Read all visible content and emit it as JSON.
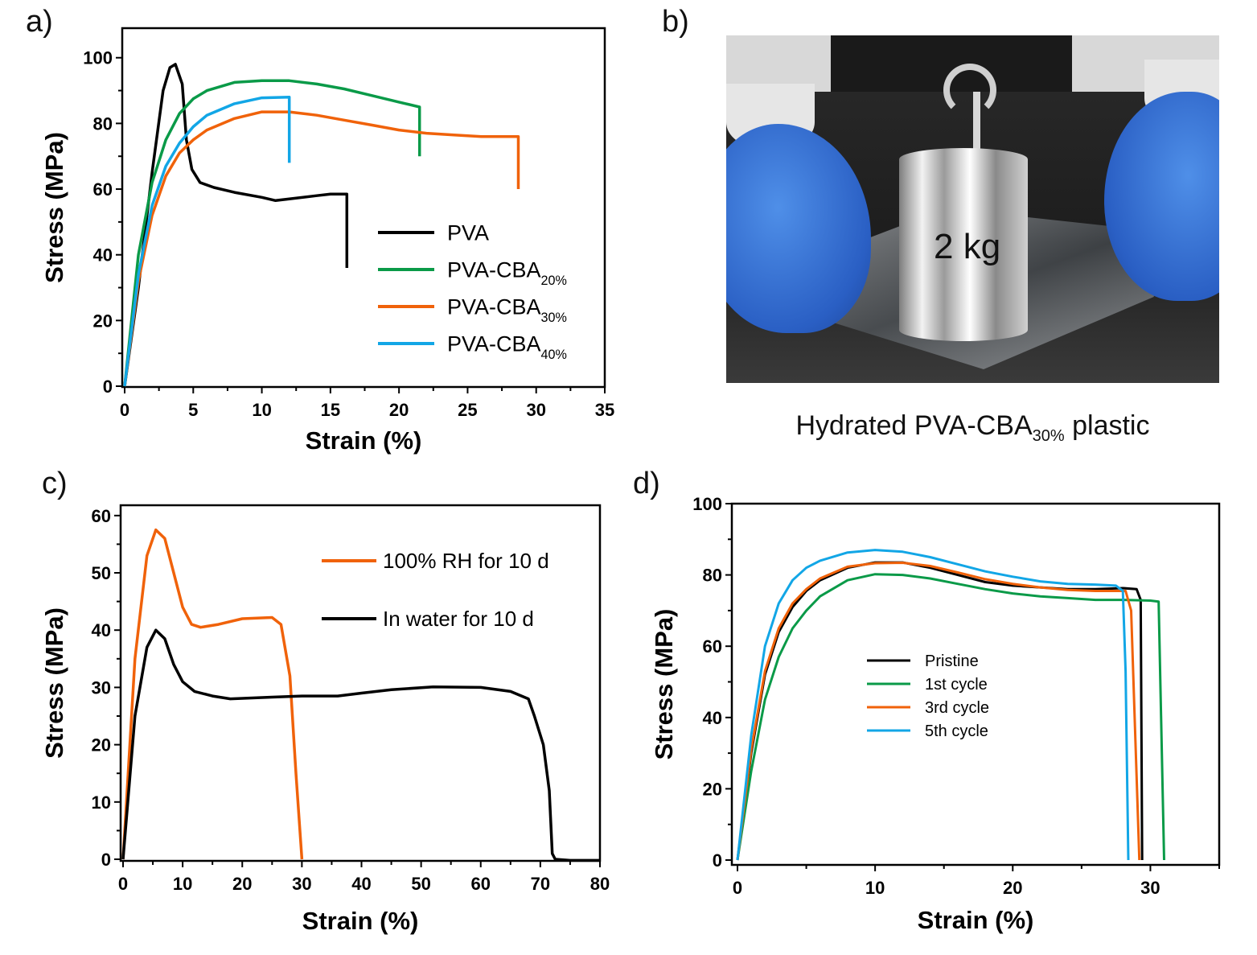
{
  "panels": {
    "a": "a)",
    "b": "b)",
    "c": "c)",
    "d": "d)"
  },
  "photo": {
    "weight_label": "2 kg",
    "caption_main": "Hydrated PVA-CBA",
    "caption_sub": "30%",
    "caption_end": " plastic"
  },
  "chart_data": [
    {
      "id": "a",
      "type": "line",
      "xlabel": "Strain (%)",
      "ylabel": "Stress (MPa)",
      "xlim": [
        0,
        35
      ],
      "ylim": [
        0,
        109
      ],
      "xticks": [
        0,
        5,
        10,
        15,
        20,
        25,
        30,
        35
      ],
      "yticks": [
        0,
        20,
        40,
        60,
        80,
        100
      ],
      "grid": false,
      "legend": "center-right",
      "series": [
        {
          "name": "PVA",
          "color": "#000000",
          "points": [
            [
              0,
              0
            ],
            [
              1,
              30
            ],
            [
              2,
              65
            ],
            [
              2.8,
              90
            ],
            [
              3.3,
              97
            ],
            [
              3.7,
              98
            ],
            [
              4.2,
              92
            ],
            [
              4.5,
              75
            ],
            [
              4.9,
              66
            ],
            [
              5.5,
              62
            ],
            [
              6.5,
              60.5
            ],
            [
              8,
              59
            ],
            [
              10,
              57.5
            ],
            [
              11,
              56.5
            ],
            [
              12,
              57
            ],
            [
              14,
              58
            ],
            [
              15,
              58.5
            ],
            [
              16.2,
              58.5
            ],
            [
              16.2,
              36
            ]
          ]
        },
        {
          "name": "PVA-CBA20%",
          "color": "#0a9a48",
          "points": [
            [
              0,
              0
            ],
            [
              1,
              40
            ],
            [
              2,
              62
            ],
            [
              3,
              75
            ],
            [
              4,
              83
            ],
            [
              5,
              87.5
            ],
            [
              6,
              90
            ],
            [
              8,
              92.5
            ],
            [
              10,
              93
            ],
            [
              12,
              93
            ],
            [
              14,
              92
            ],
            [
              16,
              90.5
            ],
            [
              18,
              88.5
            ],
            [
              20,
              86.5
            ],
            [
              21.5,
              85
            ],
            [
              21.5,
              70
            ]
          ]
        },
        {
          "name": "PVA-CBA30%",
          "color": "#f0620a",
          "points": [
            [
              0,
              0
            ],
            [
              1,
              32
            ],
            [
              2,
              52
            ],
            [
              3,
              64
            ],
            [
              4,
              71
            ],
            [
              5,
              75
            ],
            [
              6,
              78
            ],
            [
              8,
              81.5
            ],
            [
              10,
              83.5
            ],
            [
              12,
              83.5
            ],
            [
              14,
              82.5
            ],
            [
              16,
              81
            ],
            [
              18,
              79.5
            ],
            [
              20,
              78
            ],
            [
              22,
              77
            ],
            [
              24,
              76.5
            ],
            [
              26,
              76
            ],
            [
              28,
              76
            ],
            [
              28.7,
              76
            ],
            [
              28.7,
              60
            ]
          ]
        },
        {
          "name": "PVA-CBA40%",
          "color": "#12a6e6",
          "points": [
            [
              0,
              0
            ],
            [
              1,
              34
            ],
            [
              2,
              55
            ],
            [
              3,
              67
            ],
            [
              4,
              74
            ],
            [
              5,
              79
            ],
            [
              6,
              82.5
            ],
            [
              8,
              86
            ],
            [
              10,
              87.8
            ],
            [
              12,
              88
            ],
            [
              12,
              68
            ]
          ]
        }
      ]
    },
    {
      "id": "c",
      "type": "line",
      "xlabel": "Strain (%)",
      "ylabel": "Stress (MPa)",
      "xlim": [
        0,
        80
      ],
      "ylim": [
        0,
        61.8
      ],
      "xticks": [
        0,
        10,
        20,
        30,
        40,
        50,
        60,
        70,
        80
      ],
      "yticks": [
        0,
        10,
        20,
        30,
        40,
        50,
        60
      ],
      "grid": false,
      "legend": "top-right",
      "series": [
        {
          "name": "100% RH for 10 d",
          "color": "#f0620a",
          "points": [
            [
              0,
              0
            ],
            [
              2,
              35
            ],
            [
              4,
              53
            ],
            [
              5.5,
              57.5
            ],
            [
              7,
              56
            ],
            [
              8.5,
              50
            ],
            [
              10,
              44
            ],
            [
              11.5,
              41
            ],
            [
              13,
              40.5
            ],
            [
              16,
              41
            ],
            [
              20,
              42
            ],
            [
              25,
              42.2
            ],
            [
              26.5,
              41
            ],
            [
              28,
              32
            ],
            [
              29,
              15
            ],
            [
              30,
              0
            ]
          ]
        },
        {
          "name": "In water for 10 d",
          "color": "#000000",
          "points": [
            [
              0,
              0
            ],
            [
              2,
              25
            ],
            [
              4,
              37
            ],
            [
              5.5,
              40
            ],
            [
              7,
              38.5
            ],
            [
              8.5,
              34
            ],
            [
              10,
              31
            ],
            [
              12,
              29.3
            ],
            [
              15,
              28.5
            ],
            [
              18,
              28
            ],
            [
              25,
              28.3
            ],
            [
              30,
              28.5
            ],
            [
              36,
              28.5
            ],
            [
              40,
              29
            ],
            [
              45,
              29.6
            ],
            [
              52,
              30.1
            ],
            [
              60,
              30
            ],
            [
              65,
              29.3
            ],
            [
              68,
              28
            ],
            [
              69,
              25
            ],
            [
              70.5,
              20
            ],
            [
              71.5,
              12
            ],
            [
              72,
              1
            ],
            [
              72.5,
              0
            ],
            [
              75,
              -0.2
            ],
            [
              80,
              -0.2
            ]
          ]
        }
      ]
    },
    {
      "id": "d",
      "type": "line",
      "xlabel": "Strain (%)",
      "ylabel": "Stress (MPa)",
      "xlim": [
        0,
        35
      ],
      "ylim": [
        0,
        100
      ],
      "xticks": [
        0,
        10,
        20,
        30
      ],
      "yticks": [
        0,
        20,
        40,
        60,
        80,
        100
      ],
      "grid": false,
      "legend": "center",
      "series": [
        {
          "name": "Pristine",
          "color": "#000000",
          "points": [
            [
              0,
              0
            ],
            [
              1,
              30
            ],
            [
              2,
              52
            ],
            [
              3,
              64
            ],
            [
              4,
              71
            ],
            [
              5,
              75.5
            ],
            [
              6,
              78.5
            ],
            [
              8,
              82
            ],
            [
              10,
              83.5
            ],
            [
              12,
              83.5
            ],
            [
              14,
              82
            ],
            [
              16,
              80
            ],
            [
              18,
              78
            ],
            [
              20,
              77
            ],
            [
              22,
              76.5
            ],
            [
              24,
              76
            ],
            [
              26,
              76
            ],
            [
              28,
              76.3
            ],
            [
              29,
              76
            ],
            [
              29.3,
              73
            ],
            [
              29.4,
              0
            ]
          ]
        },
        {
          "name": "1st cycle",
          "color": "#0a9a48",
          "points": [
            [
              0,
              0
            ],
            [
              1,
              25
            ],
            [
              2,
              45
            ],
            [
              3,
              57
            ],
            [
              4,
              65
            ],
            [
              5,
              70
            ],
            [
              6,
              74
            ],
            [
              8,
              78.5
            ],
            [
              10,
              80.2
            ],
            [
              12,
              80
            ],
            [
              14,
              79
            ],
            [
              16,
              77.5
            ],
            [
              18,
              76
            ],
            [
              20,
              74.8
            ],
            [
              22,
              74
            ],
            [
              24,
              73.5
            ],
            [
              26,
              73
            ],
            [
              28,
              73
            ],
            [
              30,
              72.8
            ],
            [
              30.6,
              72.5
            ],
            [
              31,
              0
            ]
          ]
        },
        {
          "name": "3rd cycle",
          "color": "#f0620a",
          "points": [
            [
              0,
              0
            ],
            [
              1,
              31
            ],
            [
              2,
              53
            ],
            [
              3,
              65
            ],
            [
              4,
              72
            ],
            [
              5,
              76
            ],
            [
              6,
              79
            ],
            [
              8,
              82.3
            ],
            [
              10,
              83.3
            ],
            [
              12,
              83.4
            ],
            [
              14,
              82.5
            ],
            [
              16,
              80.7
            ],
            [
              18,
              78.8
            ],
            [
              20,
              77.5
            ],
            [
              22,
              76.5
            ],
            [
              24,
              75.8
            ],
            [
              26,
              75.5
            ],
            [
              28.2,
              75.5
            ],
            [
              28.6,
              70
            ],
            [
              29.2,
              0
            ]
          ]
        },
        {
          "name": "5th cycle",
          "color": "#12a6e6",
          "points": [
            [
              0,
              0
            ],
            [
              1,
              35
            ],
            [
              2,
              60
            ],
            [
              3,
              72
            ],
            [
              4,
              78.5
            ],
            [
              5,
              82
            ],
            [
              6,
              84
            ],
            [
              8,
              86.3
            ],
            [
              10,
              87
            ],
            [
              12,
              86.5
            ],
            [
              14,
              85
            ],
            [
              16,
              83
            ],
            [
              18,
              81
            ],
            [
              20,
              79.5
            ],
            [
              22,
              78.2
            ],
            [
              24,
              77.5
            ],
            [
              26,
              77.3
            ],
            [
              27.5,
              77
            ],
            [
              28,
              75.5
            ],
            [
              28.2,
              53
            ],
            [
              28.4,
              0
            ]
          ]
        }
      ]
    }
  ]
}
